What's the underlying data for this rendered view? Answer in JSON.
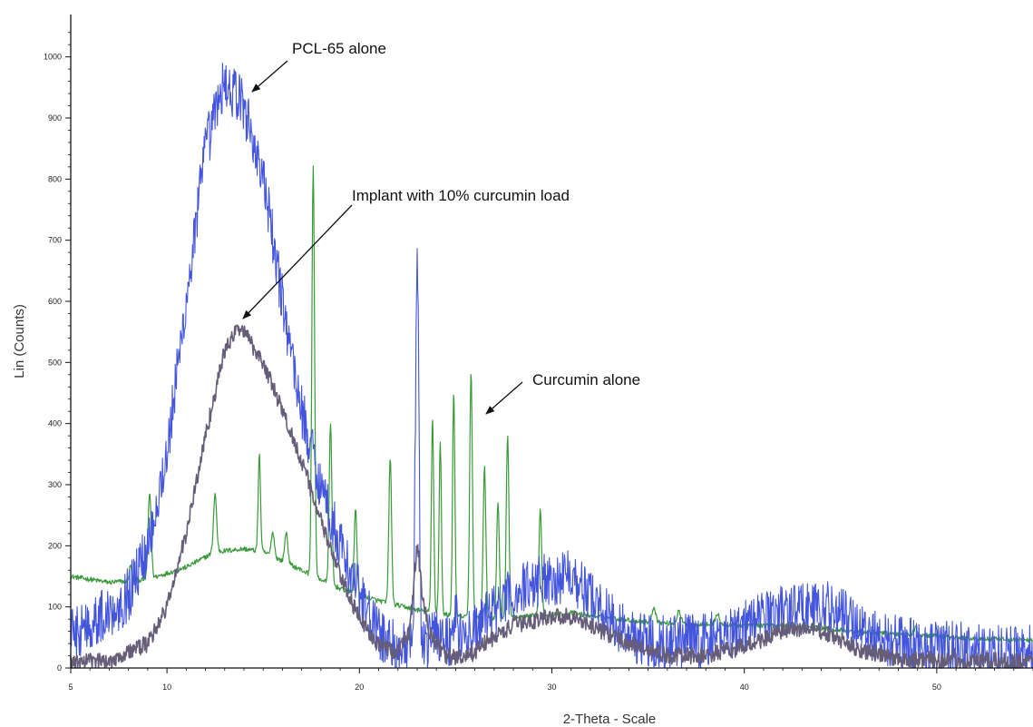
{
  "chart_data": {
    "type": "line",
    "xlabel": "2-Theta - Scale",
    "ylabel": "Lin (Counts)",
    "xlim": [
      5,
      55
    ],
    "ylim": [
      0,
      1050
    ],
    "x_ticks": [
      5,
      10,
      20,
      30,
      40,
      50
    ],
    "y_ticks": [
      0,
      100,
      200,
      300,
      400,
      500,
      600,
      700,
      800,
      900,
      1000
    ],
    "grid": false,
    "series": [
      {
        "color": "#3a9a3a",
        "line_width": 1.2,
        "baseline": [
          [
            5,
            150
          ],
          [
            7,
            140
          ],
          [
            9,
            145
          ],
          [
            11,
            165
          ],
          [
            12.5,
            190
          ],
          [
            14,
            195
          ],
          [
            15,
            190
          ],
          [
            17,
            160
          ],
          [
            19,
            130
          ],
          [
            21,
            110
          ],
          [
            23,
            95
          ],
          [
            25,
            85
          ],
          [
            27,
            80
          ],
          [
            29,
            85
          ],
          [
            31,
            90
          ],
          [
            33,
            82
          ],
          [
            35,
            75
          ],
          [
            37,
            72
          ],
          [
            40,
            70
          ],
          [
            42,
            70
          ],
          [
            44,
            65
          ],
          [
            46,
            60
          ],
          [
            48,
            55
          ],
          [
            50,
            52
          ],
          [
            52,
            48
          ],
          [
            55,
            45
          ]
        ],
        "peaks": [
          [
            8.1,
            25,
            0.06
          ],
          [
            9.1,
            140,
            0.08
          ],
          [
            12.5,
            95,
            0.08
          ],
          [
            14.8,
            160,
            0.06
          ],
          [
            15.5,
            40,
            0.08
          ],
          [
            16.2,
            50,
            0.08
          ],
          [
            17.6,
            670,
            0.07
          ],
          [
            18.5,
            260,
            0.07
          ],
          [
            19.8,
            140,
            0.07
          ],
          [
            21.6,
            240,
            0.07
          ],
          [
            23.8,
            320,
            0.06
          ],
          [
            24.2,
            280,
            0.06
          ],
          [
            24.9,
            370,
            0.06
          ],
          [
            25.8,
            400,
            0.07
          ],
          [
            26.5,
            250,
            0.07
          ],
          [
            27.2,
            190,
            0.07
          ],
          [
            27.7,
            300,
            0.07
          ],
          [
            29.4,
            175,
            0.07
          ],
          [
            35.3,
            25,
            0.1
          ],
          [
            36.6,
            20,
            0.1
          ],
          [
            38.6,
            18,
            0.1
          ],
          [
            48.9,
            12,
            0.1
          ]
        ],
        "noise": 4
      },
      {
        "color": "#4455dd",
        "line_width": 1.1,
        "baseline": [
          [
            5,
            55
          ],
          [
            7,
            90
          ],
          [
            8,
            120
          ],
          [
            9,
            200
          ],
          [
            10,
            350
          ],
          [
            11,
            600
          ],
          [
            12,
            850
          ],
          [
            13,
            960
          ],
          [
            14,
            920
          ],
          [
            15,
            800
          ],
          [
            16,
            600
          ],
          [
            17,
            420
          ],
          [
            18,
            300
          ],
          [
            19,
            200
          ],
          [
            20,
            120
          ],
          [
            21,
            55
          ],
          [
            22,
            30
          ],
          [
            23,
            30
          ],
          [
            24,
            60
          ],
          [
            25,
            40
          ],
          [
            26,
            60
          ],
          [
            27,
            95
          ],
          [
            28,
            120
          ],
          [
            29,
            140
          ],
          [
            30,
            150
          ],
          [
            31,
            140
          ],
          [
            32,
            120
          ],
          [
            33,
            80
          ],
          [
            34,
            55
          ],
          [
            35,
            45
          ],
          [
            36,
            45
          ],
          [
            37,
            45
          ],
          [
            38,
            45
          ],
          [
            39,
            55
          ],
          [
            40,
            70
          ],
          [
            41,
            85
          ],
          [
            42,
            95
          ],
          [
            43,
            100
          ],
          [
            44,
            100
          ],
          [
            45,
            90
          ],
          [
            46,
            70
          ],
          [
            47,
            50
          ],
          [
            49,
            35
          ],
          [
            52,
            30
          ],
          [
            55,
            25
          ]
        ],
        "peaks": [
          [
            23,
            650,
            0.09
          ],
          [
            25,
            50,
            0.1
          ],
          [
            31,
            25,
            0.2
          ]
        ],
        "noise": 45
      },
      {
        "color": "#665e78",
        "line_width": 1.6,
        "baseline": [
          [
            5,
            8
          ],
          [
            7,
            12
          ],
          [
            9,
            40
          ],
          [
            10,
            100
          ],
          [
            11,
            220
          ],
          [
            12,
            380
          ],
          [
            13,
            520
          ],
          [
            13.8,
            560
          ],
          [
            15,
            500
          ],
          [
            16,
            420
          ],
          [
            17,
            340
          ],
          [
            18,
            240
          ],
          [
            19,
            150
          ],
          [
            20,
            80
          ],
          [
            21,
            40
          ],
          [
            22,
            25
          ],
          [
            22.6,
            60
          ],
          [
            23,
            160
          ],
          [
            23.6,
            60
          ],
          [
            24.5,
            20
          ],
          [
            25.5,
            15
          ],
          [
            26.5,
            40
          ],
          [
            28,
            70
          ],
          [
            30,
            85
          ],
          [
            31,
            85
          ],
          [
            32,
            70
          ],
          [
            34,
            40
          ],
          [
            36,
            20
          ],
          [
            38,
            20
          ],
          [
            40,
            35
          ],
          [
            42,
            60
          ],
          [
            43,
            65
          ],
          [
            44,
            60
          ],
          [
            45,
            45
          ],
          [
            46,
            30
          ],
          [
            48,
            15
          ],
          [
            52,
            12
          ],
          [
            55,
            10
          ]
        ],
        "peaks": [
          [
            23,
            40,
            0.15
          ]
        ],
        "noise": 14
      }
    ],
    "annotations": [
      {
        "text": "PCL-65 alone"
      },
      {
        "text": "Implant with 10% curcumin load"
      },
      {
        "text": "Curcumin alone"
      }
    ]
  }
}
